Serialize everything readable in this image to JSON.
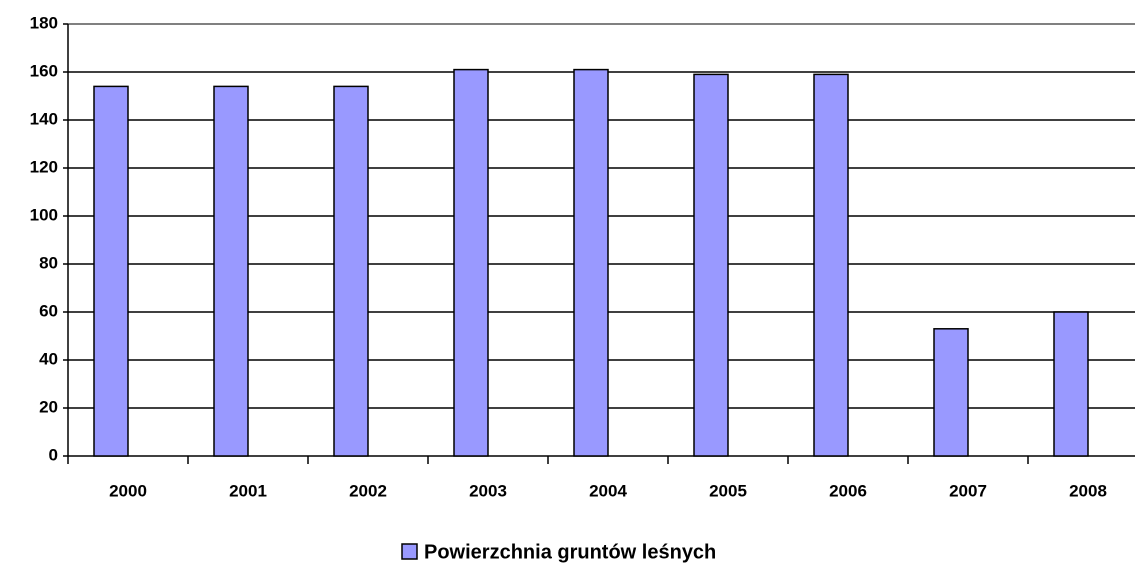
{
  "chart_data": {
    "type": "bar",
    "categories": [
      "2000",
      "2001",
      "2002",
      "2003",
      "2004",
      "2005",
      "2006",
      "2007",
      "2008"
    ],
    "series": [
      {
        "name": "Powierzchnia gruntów leśnych",
        "color": "#9999ff",
        "values": [
          154,
          154,
          154,
          161,
          161,
          159,
          159,
          53,
          60
        ]
      }
    ],
    "ylim": [
      0,
      180
    ],
    "yticks": [
      0,
      20,
      40,
      60,
      80,
      100,
      120,
      140,
      160,
      180
    ],
    "grid": true,
    "legend": "bottom"
  }
}
